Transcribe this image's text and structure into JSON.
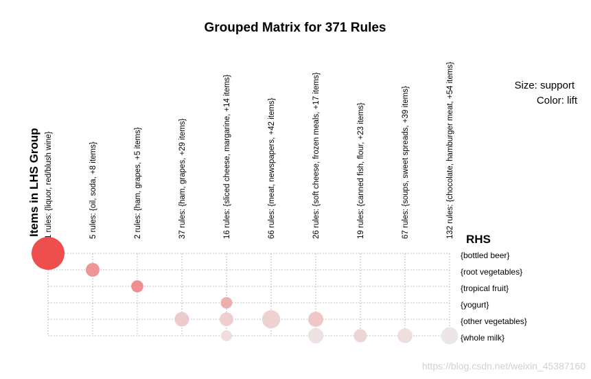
{
  "chart_data": {
    "type": "grouped_matrix_bubble",
    "title": "Grouped Matrix for 371 Rules",
    "x_axis_title": "Items in LHS Group",
    "y_axis_title": "RHS",
    "legend": {
      "size": "Size: support",
      "color": "Color: lift"
    },
    "lhs_groups": [
      "1 rules: {liquor, red/blush wine}",
      "5 rules: {oil, soda, +8 items}",
      "2 rules: {ham, grapes, +5 items}",
      "37 rules: {ham, grapes, +29 items}",
      "16 rules: {sliced cheese, margarine, +14 items}",
      "66 rules: {meat, newspapers, +42 items}",
      "26 rules: {soft cheese, frozen meals, +17 items}",
      "19 rules: {canned fish, flour, +23 items}",
      "67 rules: {soups, sweet spreads, +39 items}",
      "132 rules: {chocolate, hamburger meat, +54 items}"
    ],
    "rhs_items": [
      "{bottled beer}",
      "{root vegetables}",
      "{tropical fruit}",
      "{yogurt}",
      "{other vegetables}",
      "{whole milk}"
    ],
    "bubbles": [
      {
        "lhs": 0,
        "rhs": 0,
        "support": 1.0,
        "lift": 1.0
      },
      {
        "lhs": 1,
        "rhs": 1,
        "support": 0.3,
        "lift": 0.55
      },
      {
        "lhs": 2,
        "rhs": 2,
        "support": 0.24,
        "lift": 0.6
      },
      {
        "lhs": 4,
        "rhs": 3,
        "support": 0.22,
        "lift": 0.4
      },
      {
        "lhs": 3,
        "rhs": 4,
        "support": 0.33,
        "lift": 0.22
      },
      {
        "lhs": 4,
        "rhs": 4,
        "support": 0.3,
        "lift": 0.2
      },
      {
        "lhs": 5,
        "rhs": 4,
        "support": 0.46,
        "lift": 0.18
      },
      {
        "lhs": 6,
        "rhs": 4,
        "support": 0.35,
        "lift": 0.24
      },
      {
        "lhs": 4,
        "rhs": 5,
        "support": 0.2,
        "lift": 0.1
      },
      {
        "lhs": 6,
        "rhs": 5,
        "support": 0.36,
        "lift": 0.08
      },
      {
        "lhs": 7,
        "rhs": 5,
        "support": 0.28,
        "lift": 0.16
      },
      {
        "lhs": 8,
        "rhs": 5,
        "support": 0.34,
        "lift": 0.1
      },
      {
        "lhs": 9,
        "rhs": 5,
        "support": 0.42,
        "lift": 0.05
      }
    ],
    "colors": {
      "low": "#eeeeee",
      "high": "#ee4e4e",
      "grid": "#bdbdbd"
    }
  },
  "watermark": "https://blog.csdn.net/weixin_45387160"
}
